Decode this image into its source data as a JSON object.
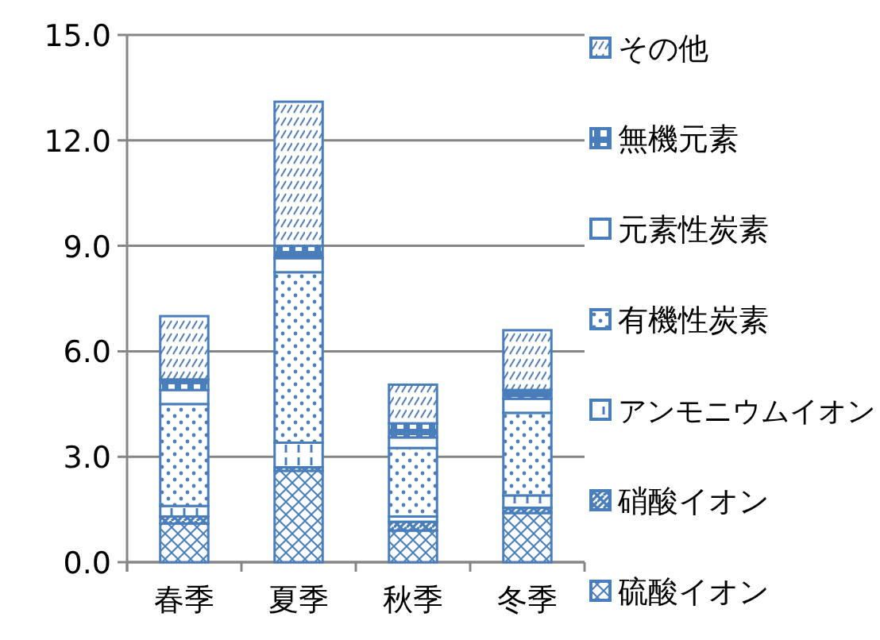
{
  "chart_data": {
    "type": "bar",
    "stacked": true,
    "categories": [
      "春季",
      "夏季",
      "秋季",
      "冬季"
    ],
    "series": [
      {
        "name": "硫酸イオン",
        "color": "#4a7ebb",
        "values": [
          1.1,
          2.6,
          0.9,
          1.4
        ]
      },
      {
        "name": "硝酸イオン",
        "color": "#4a7ebb",
        "values": [
          0.2,
          0.1,
          0.25,
          0.15
        ]
      },
      {
        "name": "アンモニウムイオン",
        "color": "#4a7ebb",
        "values": [
          0.3,
          0.7,
          0.15,
          0.35
        ]
      },
      {
        "name": "有機性炭素",
        "color": "#4a7ebb",
        "values": [
          2.9,
          4.85,
          1.95,
          2.35
        ]
      },
      {
        "name": "元素性炭素",
        "color": "#4a7ebb",
        "values": [
          0.4,
          0.4,
          0.3,
          0.4
        ]
      },
      {
        "name": "無機元素",
        "color": "#4a7ebb",
        "values": [
          0.3,
          0.35,
          0.4,
          0.25
        ]
      },
      {
        "name": "その他",
        "color": "#4a7ebb",
        "values": [
          1.8,
          4.1,
          1.1,
          1.7
        ]
      }
    ],
    "ylim": [
      0,
      15
    ],
    "yticks": [
      {
        "value": 0,
        "label": "0.0"
      },
      {
        "value": 3,
        "label": "3.0"
      },
      {
        "value": 6,
        "label": "6.0"
      },
      {
        "value": 9,
        "label": "9.0"
      },
      {
        "value": 12,
        "label": "12.0"
      },
      {
        "value": 15,
        "label": "15.0"
      }
    ],
    "grid": "y",
    "legend": "right"
  }
}
